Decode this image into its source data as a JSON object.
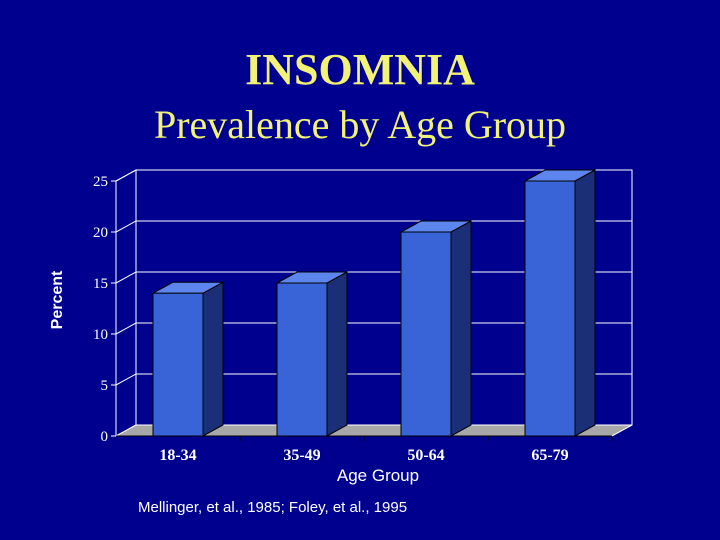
{
  "slide": {
    "title": "INSOMNIA",
    "subtitle": "Prevalence by Age Group",
    "source": "Mellinger, et al., 1985; Foley, et al., 1995"
  },
  "colors": {
    "background": "#00008f",
    "title": "#f2f276",
    "bar_front": "#3864d8",
    "bar_side": "#1a2f78",
    "bar_top": "#5c86ee",
    "floor": "#a8a8a8"
  },
  "chart_data": {
    "type": "bar",
    "categories": [
      "18-34",
      "35-49",
      "50-64",
      "65-79"
    ],
    "values": [
      14,
      15,
      20,
      25
    ],
    "title": "",
    "xlabel": "Age Group",
    "ylabel": "Percent",
    "ylim": [
      0,
      25
    ],
    "yticks": [
      0,
      5,
      10,
      15,
      20,
      25
    ],
    "grid": true,
    "style": "3d"
  }
}
